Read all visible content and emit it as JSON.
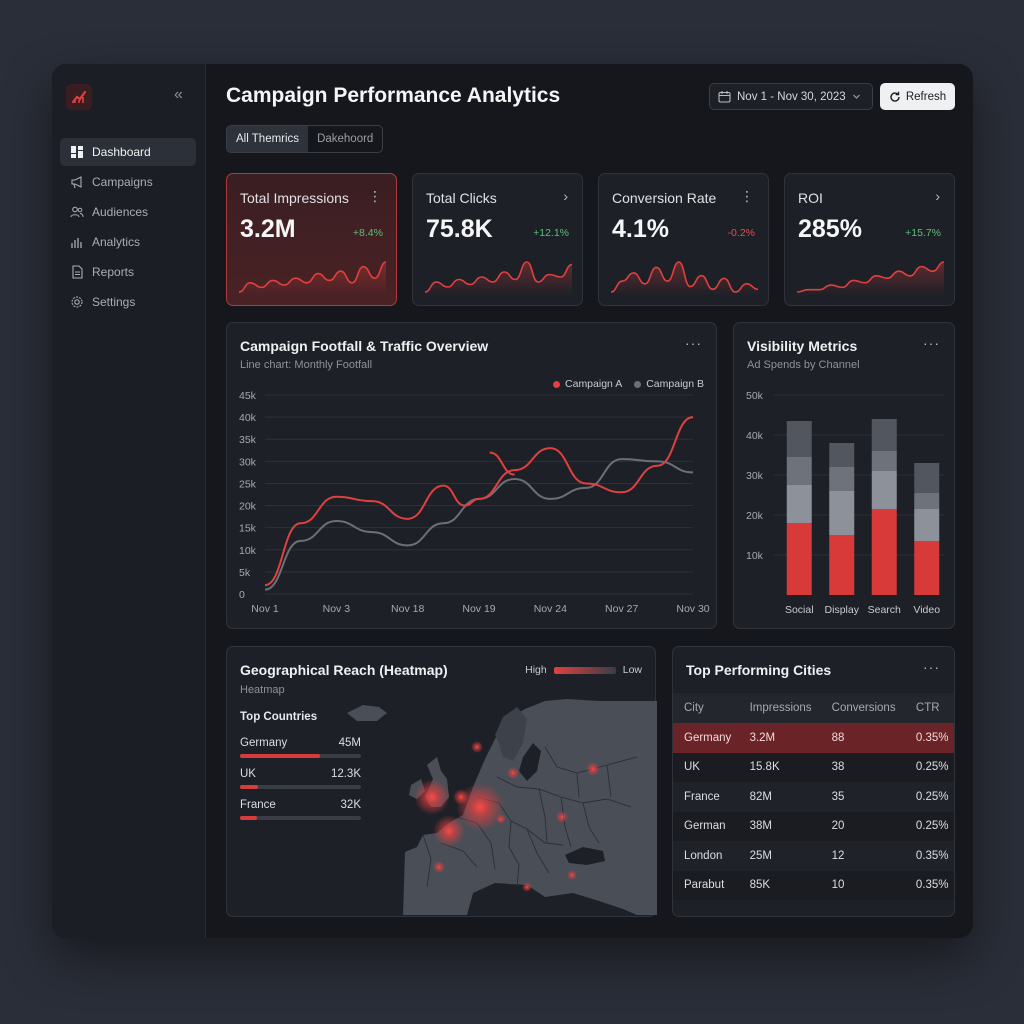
{
  "header": {
    "title": "Campaign Performance Analytics",
    "date_range": "Nov 1 - Nov 30, 2023",
    "refresh_label": "Refresh"
  },
  "tabs": [
    {
      "label": "All Themrics",
      "active": true
    },
    {
      "label": "Dakehoord",
      "active": false
    }
  ],
  "sidebar": {
    "items": [
      {
        "label": "Dashboard",
        "icon": "dashboard-icon",
        "active": true
      },
      {
        "label": "Campaigns",
        "icon": "megaphone-icon",
        "active": false
      },
      {
        "label": "Audiences",
        "icon": "users-icon",
        "active": false
      },
      {
        "label": "Analytics",
        "icon": "bar-chart-icon",
        "active": false
      },
      {
        "label": "Reports",
        "icon": "document-icon",
        "active": false
      },
      {
        "label": "Settings",
        "icon": "gear-icon",
        "active": false
      }
    ]
  },
  "kpis": [
    {
      "label": "Total Impressions",
      "value": "3.2M",
      "delta": "+8.4%",
      "trend": "up",
      "action": "more",
      "spark": [
        3,
        7,
        5,
        8,
        6,
        9,
        7,
        11,
        8,
        12,
        7,
        14,
        9,
        16
      ]
    },
    {
      "label": "Total Clicks",
      "value": "75.8K",
      "delta": "+12.1%",
      "trend": "up",
      "action": "arrow",
      "spark": [
        2,
        6,
        4,
        7,
        5,
        8,
        6,
        10,
        7,
        14,
        6,
        9,
        8,
        13
      ]
    },
    {
      "label": "Conversion Rate",
      "value": "4.1%",
      "delta": "-0.2%",
      "trend": "down",
      "action": "more",
      "spark": [
        5,
        9,
        12,
        8,
        14,
        9,
        16,
        7,
        11,
        6,
        10,
        5,
        8,
        6
      ]
    },
    {
      "label": "ROI",
      "value": "285%",
      "delta": "+15.7%",
      "trend": "up",
      "action": "arrow",
      "spark": [
        2,
        3,
        3,
        5,
        4,
        7,
        6,
        9,
        8,
        11,
        9,
        13,
        11,
        15
      ]
    }
  ],
  "footfall": {
    "title": "Campaign Footfall & Traffic Overview",
    "subtitle": "Line chart: Monthly Footfall",
    "menu": "···"
  },
  "visibility": {
    "title": "Visibility Metrics",
    "subtitle": "Ad Spends by Channel",
    "menu": "···"
  },
  "geo": {
    "title": "Geographical Reach (Heatmap)",
    "subtitle": "Heatmap",
    "legend_high": "High",
    "legend_low": "Low",
    "countries_title": "Top Countries",
    "countries": [
      {
        "name": "Germany",
        "value": "45M",
        "share": 0.66
      },
      {
        "name": "UK",
        "value": "12.3K",
        "share": 0.15
      },
      {
        "name": "France",
        "value": "32K",
        "share": 0.14
      }
    ]
  },
  "cities": {
    "title": "Top Performing Cities",
    "menu": "···",
    "columns": [
      "City",
      "Impressions",
      "Conversions",
      "CTR"
    ],
    "rows": [
      [
        "Germany",
        "3.2M",
        "88",
        "0.35%"
      ],
      [
        "UK",
        "15.8K",
        "38",
        "0.25%"
      ],
      [
        "France",
        "82M",
        "35",
        "0.25%"
      ],
      [
        "German",
        "38M",
        "20",
        "0.25%"
      ],
      [
        "London",
        "25M",
        "12",
        "0.35%"
      ],
      [
        "Parabut",
        "85K",
        "10",
        "0.35%"
      ]
    ]
  },
  "colors": {
    "accent": "#e0403f",
    "series_b": "#6b6f78",
    "positive": "#5fbf77",
    "negative": "#e0504d"
  },
  "chart_data": [
    {
      "type": "line",
      "title": "Campaign Footfall & Traffic Overview",
      "subtitle": "Line chart: Monthly Footfall",
      "categories": [
        "Nov 1",
        "Nov 3",
        "Nov 18",
        "Nov 19",
        "Nov 24",
        "Nov 27",
        "Nov 30"
      ],
      "y_ticks": [
        "0",
        "5k",
        "10k",
        "15k",
        "20k",
        "25k",
        "30k",
        "35k",
        "40k",
        "45k"
      ],
      "ylim": [
        0,
        45000
      ],
      "grid": true,
      "legend": "top-right",
      "series": [
        {
          "name": "Campaign A",
          "color": "#e0403f",
          "points": [
            [
              0,
              2000
            ],
            [
              0.5,
              16000
            ],
            [
              1,
              22000
            ],
            [
              1.5,
              21000
            ],
            [
              2,
              17000
            ],
            [
              2.5,
              24500
            ],
            [
              2.8,
              20000
            ],
            [
              3,
              21500
            ],
            [
              3.5,
              28000
            ],
            [
              4,
              33000
            ],
            [
              4.5,
              25000
            ],
            [
              5,
              23000
            ],
            [
              5.5,
              29000
            ],
            [
              6,
              40000
            ]
          ]
        },
        {
          "name": "Campaign B",
          "color": "#6b6f78",
          "points": [
            [
              0,
              1000
            ],
            [
              0.5,
              12000
            ],
            [
              1,
              16500
            ],
            [
              1.5,
              14000
            ],
            [
              2,
              11000
            ],
            [
              2.5,
              16000
            ],
            [
              3,
              21500
            ],
            [
              3.5,
              26000
            ],
            [
              4,
              21500
            ],
            [
              4.5,
              24000
            ],
            [
              5,
              30500
            ],
            [
              5.5,
              30000
            ],
            [
              6,
              27500
            ]
          ]
        }
      ],
      "extra_segment": {
        "series": "Campaign A",
        "points": [
          [
            3.15,
            32000
          ],
          [
            3.5,
            27000
          ]
        ]
      }
    },
    {
      "type": "bar",
      "title": "Visibility Metrics",
      "subtitle": "Ad Spends by Channel",
      "stacked": true,
      "categories": [
        "Social",
        "Display",
        "Search",
        "Video"
      ],
      "y_ticks": [
        "10k",
        "20k",
        "30k",
        "40k",
        "50k"
      ],
      "ylim": [
        0,
        50000
      ],
      "grid": true,
      "segments": [
        {
          "color": "#d83a3a",
          "values": [
            18000,
            15000,
            21500,
            13500
          ]
        },
        {
          "color": "#8d9199",
          "values": [
            9500,
            11000,
            9500,
            8000
          ]
        },
        {
          "color": "#6e727b",
          "values": [
            7000,
            6000,
            5000,
            4000
          ]
        },
        {
          "color": "#52565f",
          "values": [
            9000,
            6000,
            8000,
            7500
          ]
        }
      ]
    }
  ]
}
